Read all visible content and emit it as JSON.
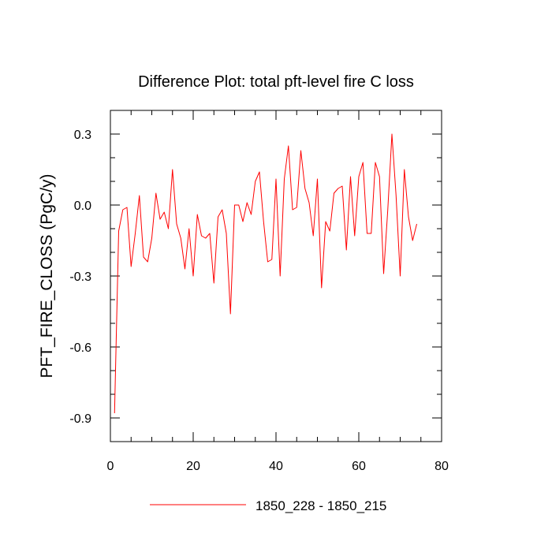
{
  "chart_data": {
    "type": "line",
    "title": "Difference Plot: total pft-level fire C loss",
    "xlabel": "",
    "ylabel": "PFT_FIRE_CLOSS  (PgC/y)",
    "xlim": [
      0,
      80
    ],
    "ylim": [
      -1.0,
      0.4
    ],
    "xticks": [
      0,
      20,
      40,
      60,
      80
    ],
    "yticks": [
      -0.9,
      -0.6,
      -0.3,
      0.0,
      0.3
    ],
    "xtick_labels": [
      "0",
      "20",
      "40",
      "60",
      "80"
    ],
    "ytick_labels": [
      "-0.9",
      "-0.6",
      "-0.3",
      "0.0",
      "0.3"
    ],
    "grid": false,
    "legend_position": "bottom-center",
    "series": [
      {
        "name": "1850_228 - 1850_215",
        "color": "#ff0000",
        "x": [
          1,
          2,
          3,
          4,
          5,
          6,
          7,
          8,
          9,
          10,
          11,
          12,
          13,
          14,
          15,
          16,
          17,
          18,
          19,
          20,
          21,
          22,
          23,
          24,
          25,
          26,
          27,
          28,
          29,
          30,
          31,
          32,
          33,
          34,
          35,
          36,
          37,
          38,
          39,
          40,
          41,
          42,
          43,
          44,
          45,
          46,
          47,
          48,
          49,
          50,
          51,
          52,
          53,
          54,
          55,
          56,
          57,
          58,
          59,
          60,
          61,
          62,
          63,
          64,
          65,
          66,
          67,
          68,
          69,
          70,
          71,
          72,
          73,
          74
        ],
        "y": [
          -0.88,
          -0.11,
          -0.02,
          -0.01,
          -0.26,
          -0.12,
          0.04,
          -0.22,
          -0.24,
          -0.14,
          0.05,
          -0.06,
          -0.03,
          -0.1,
          0.15,
          -0.08,
          -0.14,
          -0.27,
          -0.1,
          -0.3,
          -0.04,
          -0.13,
          -0.14,
          -0.12,
          -0.33,
          -0.05,
          -0.02,
          -0.12,
          -0.46,
          0.0,
          0.0,
          -0.07,
          0.01,
          -0.04,
          0.1,
          0.14,
          -0.07,
          -0.24,
          -0.23,
          0.11,
          -0.3,
          0.11,
          0.25,
          -0.02,
          -0.01,
          0.23,
          0.07,
          0.01,
          -0.13,
          0.11,
          -0.35,
          -0.07,
          -0.11,
          0.05,
          0.07,
          0.08,
          -0.19,
          0.12,
          -0.13,
          0.12,
          0.18,
          -0.12,
          -0.12,
          0.18,
          0.12,
          -0.29,
          -0.02,
          0.3,
          0.04,
          -0.3,
          0.15,
          -0.05,
          -0.15,
          -0.08
        ]
      }
    ]
  }
}
